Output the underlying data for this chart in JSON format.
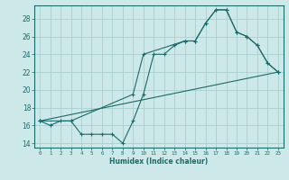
{
  "xlabel": "Humidex (Indice chaleur)",
  "ylabel": "",
  "background_color": "#cde8e8",
  "grid_color": "#aacfcf",
  "line_color": "#1a6b6b",
  "xlim": [
    -0.5,
    23.5
  ],
  "ylim": [
    13.5,
    29.5
  ],
  "yticks": [
    14,
    16,
    18,
    20,
    22,
    24,
    26,
    28
  ],
  "xticks": [
    0,
    1,
    2,
    3,
    4,
    5,
    6,
    7,
    8,
    9,
    10,
    11,
    12,
    13,
    14,
    15,
    16,
    17,
    18,
    19,
    20,
    21,
    22,
    23
  ],
  "xtick_labels": [
    "0",
    "1",
    "2",
    "3",
    "4",
    "5",
    "6",
    "7",
    "8",
    "9",
    "10",
    "11",
    "12",
    "13",
    "14",
    "15",
    "16",
    "17",
    "18",
    "19",
    "20",
    "21",
    "22",
    "23"
  ],
  "series": [
    {
      "x": [
        0,
        1,
        2,
        3,
        4,
        5,
        6,
        7,
        8,
        9,
        10,
        11,
        12,
        13,
        14,
        15,
        16,
        17,
        18,
        19,
        20,
        21,
        22,
        23
      ],
      "y": [
        16.5,
        16.0,
        16.5,
        16.5,
        15.0,
        15.0,
        15.0,
        15.0,
        14.0,
        16.5,
        19.5,
        24.0,
        24.0,
        25.0,
        25.5,
        25.5,
        27.5,
        29.0,
        29.0,
        26.5,
        26.0,
        25.0,
        23.0,
        22.0
      ]
    },
    {
      "x": [
        0,
        3,
        9,
        10,
        14,
        15,
        16,
        17,
        18,
        19,
        20,
        21,
        22,
        23
      ],
      "y": [
        16.5,
        16.5,
        19.5,
        24.0,
        25.5,
        25.5,
        27.5,
        29.0,
        29.0,
        26.5,
        26.0,
        25.0,
        23.0,
        22.0
      ]
    },
    {
      "x": [
        0,
        23
      ],
      "y": [
        16.5,
        22.0
      ]
    }
  ]
}
